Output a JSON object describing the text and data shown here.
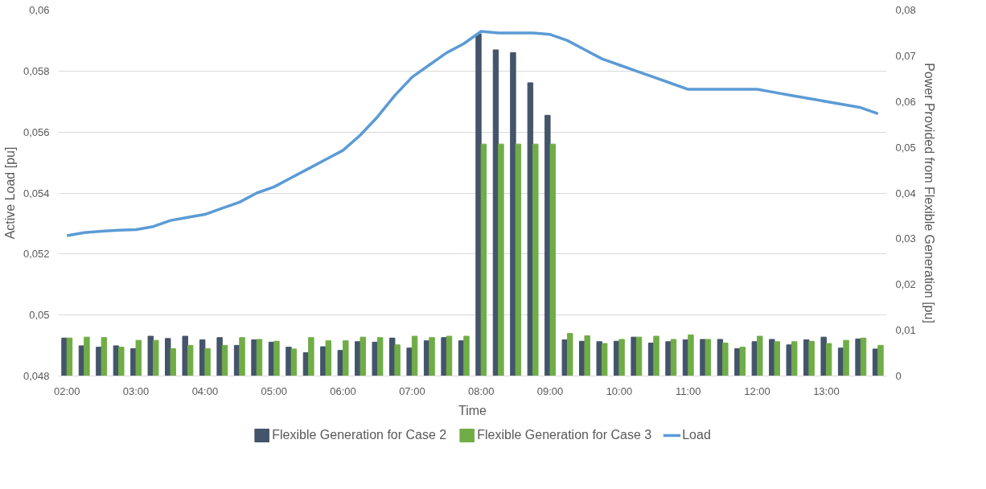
{
  "chart_data": {
    "type": "bar",
    "xlabel": "Time",
    "ylabel": "Active Load [pu]",
    "y2label": "Power Provided from Flexible Generation [pu]",
    "categories": [
      "02:00",
      null,
      null,
      null,
      "03:00",
      null,
      null,
      null,
      "04:00",
      null,
      null,
      null,
      "05:00",
      null,
      null,
      null,
      "06:00",
      null,
      null,
      null,
      "07:00",
      null,
      null,
      null,
      "08:00",
      null,
      null,
      null,
      "09:00",
      null,
      null,
      null,
      "10:00",
      null,
      null,
      null,
      "11:00",
      null,
      null,
      null,
      "12:00",
      null,
      null,
      null,
      "13:00",
      null,
      null,
      null
    ],
    "series": [
      {
        "name": "Flexible Generation for Case 2",
        "axis": "y2",
        "color": "#44546a",
        "values": [
          0.0083,
          0.0066,
          0.0063,
          0.0066,
          0.006,
          0.0087,
          0.0082,
          0.0087,
          0.0079,
          0.0084,
          0.0067,
          0.0079,
          0.0074,
          0.0063,
          0.0051,
          0.0064,
          0.0056,
          0.0075,
          0.0074,
          0.0083,
          0.0061,
          0.0077,
          0.0084,
          0.0077,
          0.0748,
          0.0713,
          0.0707,
          0.0641,
          0.057,
          0.0079,
          0.0076,
          0.0075,
          0.0076,
          0.0085,
          0.0072,
          0.0075,
          0.0079,
          0.008,
          0.008,
          0.006,
          0.0075,
          0.008,
          0.0068,
          0.0079,
          0.0085,
          0.0061,
          0.0081,
          0.0059
        ]
      },
      {
        "name": "Flexible Generation for Case 3",
        "axis": "y2",
        "color": "#70ad47",
        "values": [
          0.0083,
          0.0085,
          0.0084,
          0.0063,
          0.0078,
          0.0078,
          0.006,
          0.0067,
          0.006,
          0.0067,
          0.0084,
          0.008,
          0.0076,
          0.0059,
          0.0084,
          0.0077,
          0.0077,
          0.0085,
          0.0084,
          0.0068,
          0.0087,
          0.0084,
          0.0087,
          0.0087,
          0.0507,
          0.0507,
          0.0507,
          0.0507,
          0.0507,
          0.0093,
          0.0088,
          0.0071,
          0.008,
          0.0085,
          0.0087,
          0.008,
          0.009,
          0.008,
          0.0072,
          0.0063,
          0.0087,
          0.0075,
          0.0075,
          0.0076,
          0.0071,
          0.0078,
          0.0083,
          0.0067
        ]
      },
      {
        "name": "Load",
        "type": "line",
        "axis": "y",
        "color": "#5b9bd5",
        "values": [
          0.0526,
          0.0527,
          0.05275,
          0.05278,
          0.0528,
          0.0529,
          0.0531,
          0.0532,
          0.0533,
          0.0535,
          0.0537,
          0.054,
          0.0542,
          0.0545,
          0.0548,
          0.0551,
          0.0554,
          0.0559,
          0.0565,
          0.0572,
          0.0578,
          0.0582,
          0.0586,
          0.0589,
          0.0593,
          0.05925,
          0.05925,
          0.05925,
          0.0592,
          0.059,
          0.0587,
          0.0584,
          0.0582,
          0.058,
          0.0578,
          0.0576,
          0.0574,
          0.0574,
          0.0574,
          0.0574,
          0.0574,
          0.0573,
          0.0572,
          0.0571,
          0.057,
          0.0569,
          0.0568,
          0.0566
        ]
      }
    ],
    "ylim": [
      0.048,
      0.06
    ],
    "yticks": [
      {
        "value": 0.048,
        "label": "0,048"
      },
      {
        "value": 0.05,
        "label": "0,05"
      },
      {
        "value": 0.052,
        "label": "0,052"
      },
      {
        "value": 0.054,
        "label": "0,054"
      },
      {
        "value": 0.056,
        "label": "0,056"
      },
      {
        "value": 0.058,
        "label": "0,058"
      },
      {
        "value": 0.06,
        "label": "0,06"
      }
    ],
    "y2lim": [
      0,
      0.08
    ],
    "y2ticks": [
      0,
      {
        "value": 0.01,
        "label": "0,01"
      },
      {
        "value": 0.02,
        "label": "0,02"
      },
      {
        "value": 0.03,
        "label": "0,03"
      },
      {
        "value": 0.04,
        "label": "0,04"
      },
      {
        "value": 0.05,
        "label": "0,05"
      },
      {
        "value": 0.06,
        "label": "0,06"
      },
      {
        "value": 0.07,
        "label": "0,07"
      },
      {
        "value": 0.08,
        "label": "0,08"
      }
    ],
    "grid": "y",
    "legend": "bottom",
    "marker": "none",
    "line_style": "solid"
  }
}
